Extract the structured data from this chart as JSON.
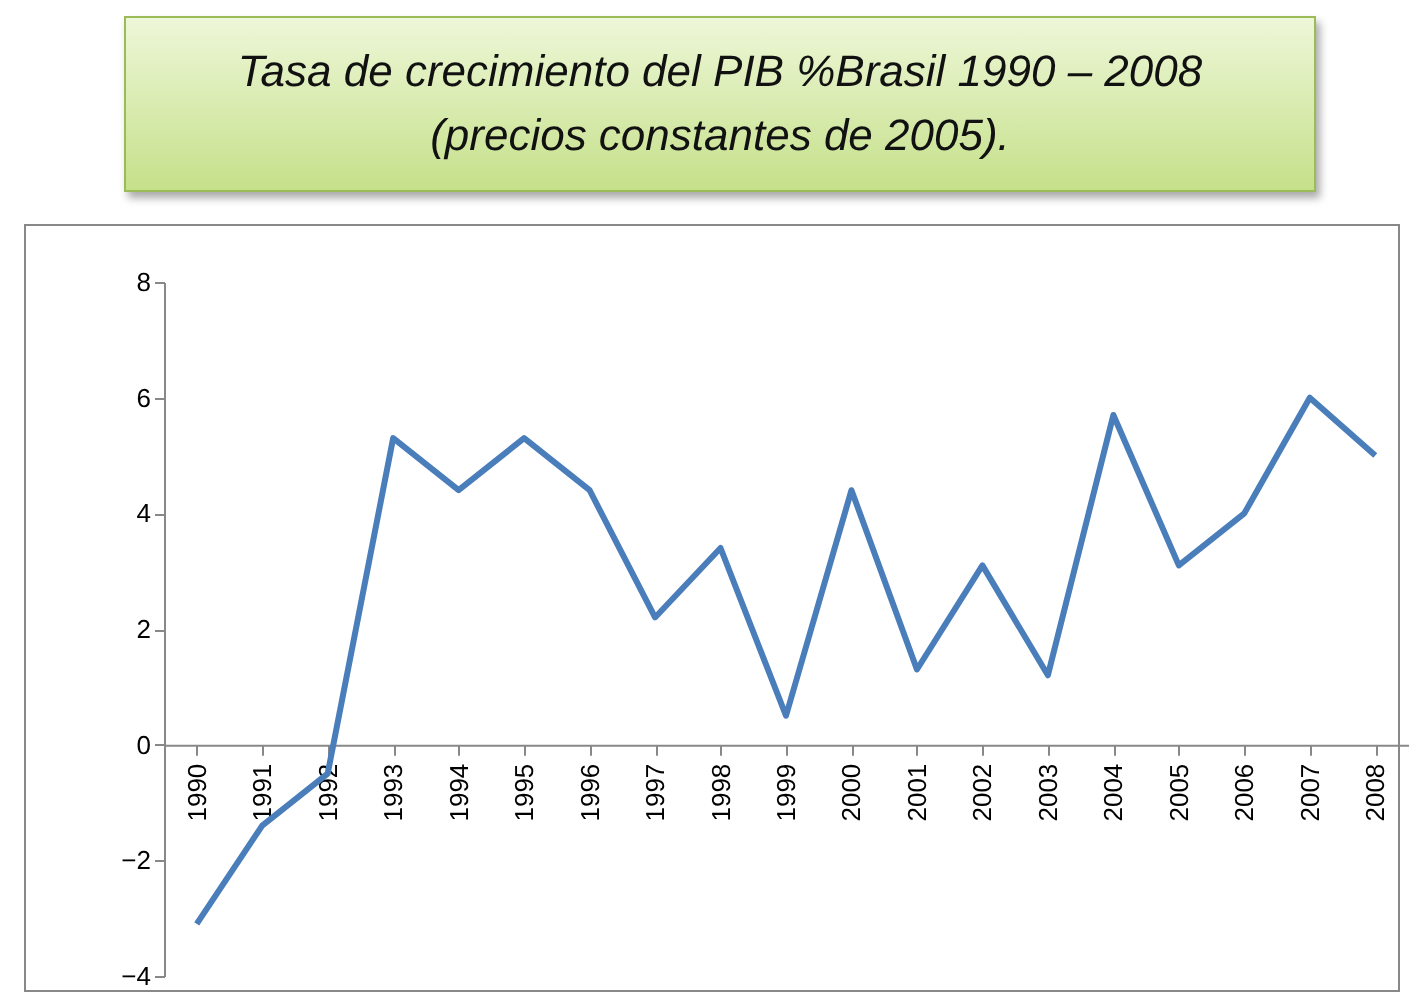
{
  "chart_data": {
    "type": "line",
    "title": "Tasa de crecimiento del PIB %Brasil 1990 – 2008 (precios constantes  de  2005).",
    "categories": [
      "1990",
      "1991",
      "1992",
      "1993",
      "1994",
      "1995",
      "1996",
      "1997",
      "1998",
      "1999",
      "2000",
      "2001",
      "2002",
      "2003",
      "2004",
      "2005",
      "2006",
      "2007",
      "2008"
    ],
    "series": [
      {
        "color": "#4a7ebb",
        "values": [
          -3.1,
          -1.4,
          -0.5,
          5.3,
          4.4,
          5.3,
          4.4,
          2.2,
          3.4,
          0.5,
          4.4,
          1.3,
          3.1,
          1.2,
          5.7,
          3.1,
          4.0,
          6.0,
          5.0
        ]
      }
    ],
    "ylim": [
      -4,
      8
    ],
    "yticks": [
      -4,
      -2,
      0,
      2,
      4,
      6,
      8
    ],
    "grid": false,
    "legend": false,
    "marker": "none",
    "line_style": "solid"
  }
}
